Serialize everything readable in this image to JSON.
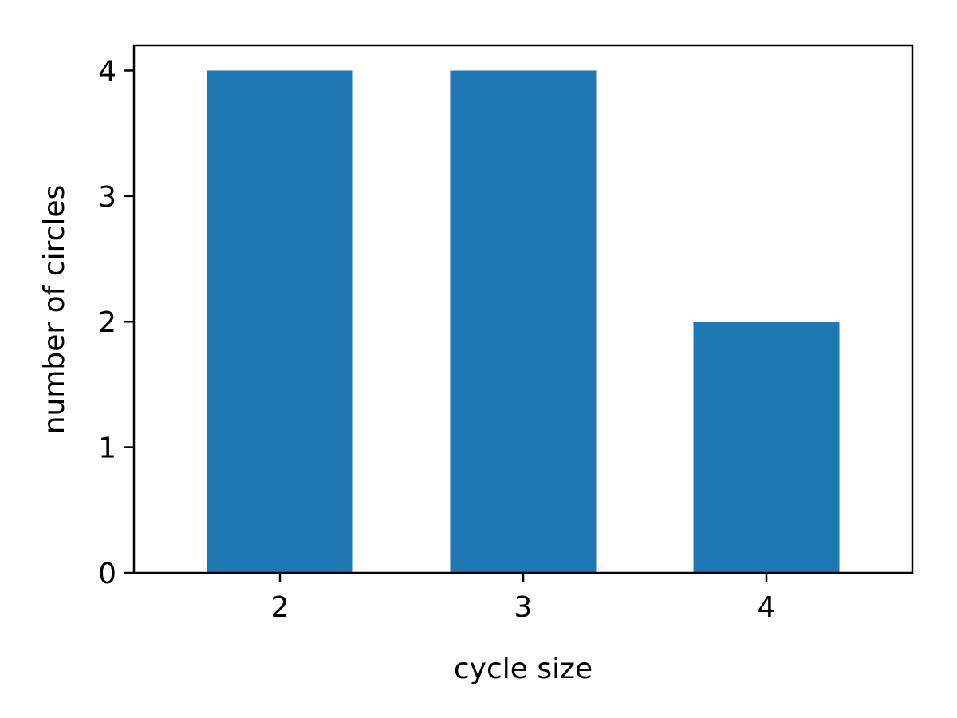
{
  "chart_data": {
    "type": "bar",
    "categories": [
      "2",
      "3",
      "4"
    ],
    "values": [
      4,
      4,
      2
    ],
    "xlabel": "cycle size",
    "ylabel": "number of circles",
    "ylim": [
      0,
      4.2
    ],
    "yticks": [
      "0",
      "1",
      "2",
      "3",
      "4"
    ],
    "grid": false,
    "bar_color": "#1f77b4"
  }
}
